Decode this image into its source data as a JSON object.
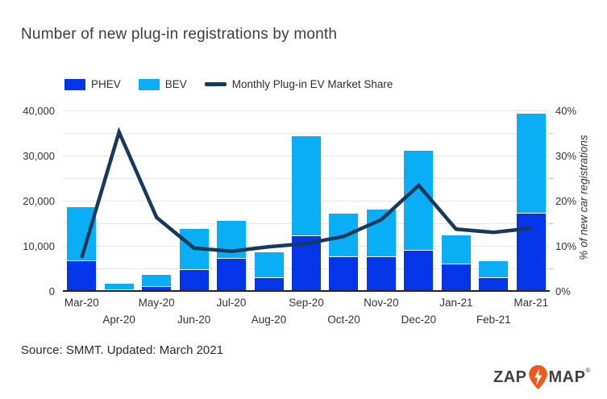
{
  "title": "Number of new plug-in registrations by month",
  "source": "Source: SMMT. Updated: March 2021",
  "legend": [
    {
      "label": "PHEV",
      "color": "#0535e8",
      "type": "box"
    },
    {
      "label": "BEV",
      "color": "#0aaef5",
      "type": "box"
    },
    {
      "label": "Monthly Plug-in EV Market Share",
      "color": "#16395c",
      "type": "line"
    }
  ],
  "logo": {
    "zap": "ZAP",
    "map": "MAP",
    "registered": "®",
    "pin_color": "#f1581d",
    "text_color": "#414141"
  },
  "colors": {
    "phev": "#0535e8",
    "bev": "#0aaef5",
    "line": "#16395c",
    "grid": "#e6e6e6",
    "axis": "#252525",
    "text": "#333333"
  },
  "chart_data": {
    "type": "bar",
    "subtype": "stacked-bar-with-line",
    "title": "Number of new plug-in registrations by month",
    "categories": [
      "Mar-20",
      "Apr-20",
      "May-20",
      "Jun-20",
      "Jul-20",
      "Aug-20",
      "Sep-20",
      "Oct-20",
      "Nov-20",
      "Dec-20",
      "Jan-21",
      "Feb-21",
      "Mar-21"
    ],
    "series": [
      {
        "name": "PHEV",
        "type": "bar",
        "stack": "registrations",
        "axis": "left",
        "color": "#0535e8",
        "values": [
          6800,
          400,
          1100,
          4900,
          7300,
          3000,
          12400,
          7700,
          7600,
          9100,
          6100,
          3100,
          17300
        ]
      },
      {
        "name": "BEV",
        "type": "bar",
        "stack": "registrations",
        "axis": "left",
        "color": "#0aaef5",
        "values": [
          11700,
          1300,
          2400,
          8900,
          8200,
          5600,
          21900,
          9400,
          10400,
          21900,
          6300,
          3500,
          22000
        ]
      },
      {
        "name": "Monthly Plug-in EV Market Share",
        "type": "line",
        "axis": "right",
        "color": "#16395c",
        "values": [
          7.3,
          35.2,
          16.3,
          9.5,
          8.8,
          9.8,
          10.5,
          12.1,
          15.8,
          23.4,
          13.7,
          13.0,
          13.9
        ]
      }
    ],
    "left_axis": {
      "min": 0,
      "max": 40000,
      "minor_step": 5000,
      "tick_step": 10000,
      "ticks": [
        "0",
        "10,000",
        "20,000",
        "30,000",
        "40,000"
      ]
    },
    "right_axis": {
      "min": 0,
      "max": 40,
      "minor_step": 5,
      "tick_step": 10,
      "ticks": [
        "0%",
        "10%",
        "20%",
        "30%",
        "40%"
      ],
      "label": "% of new car registrations"
    },
    "grid": true,
    "legend_position": "top"
  }
}
